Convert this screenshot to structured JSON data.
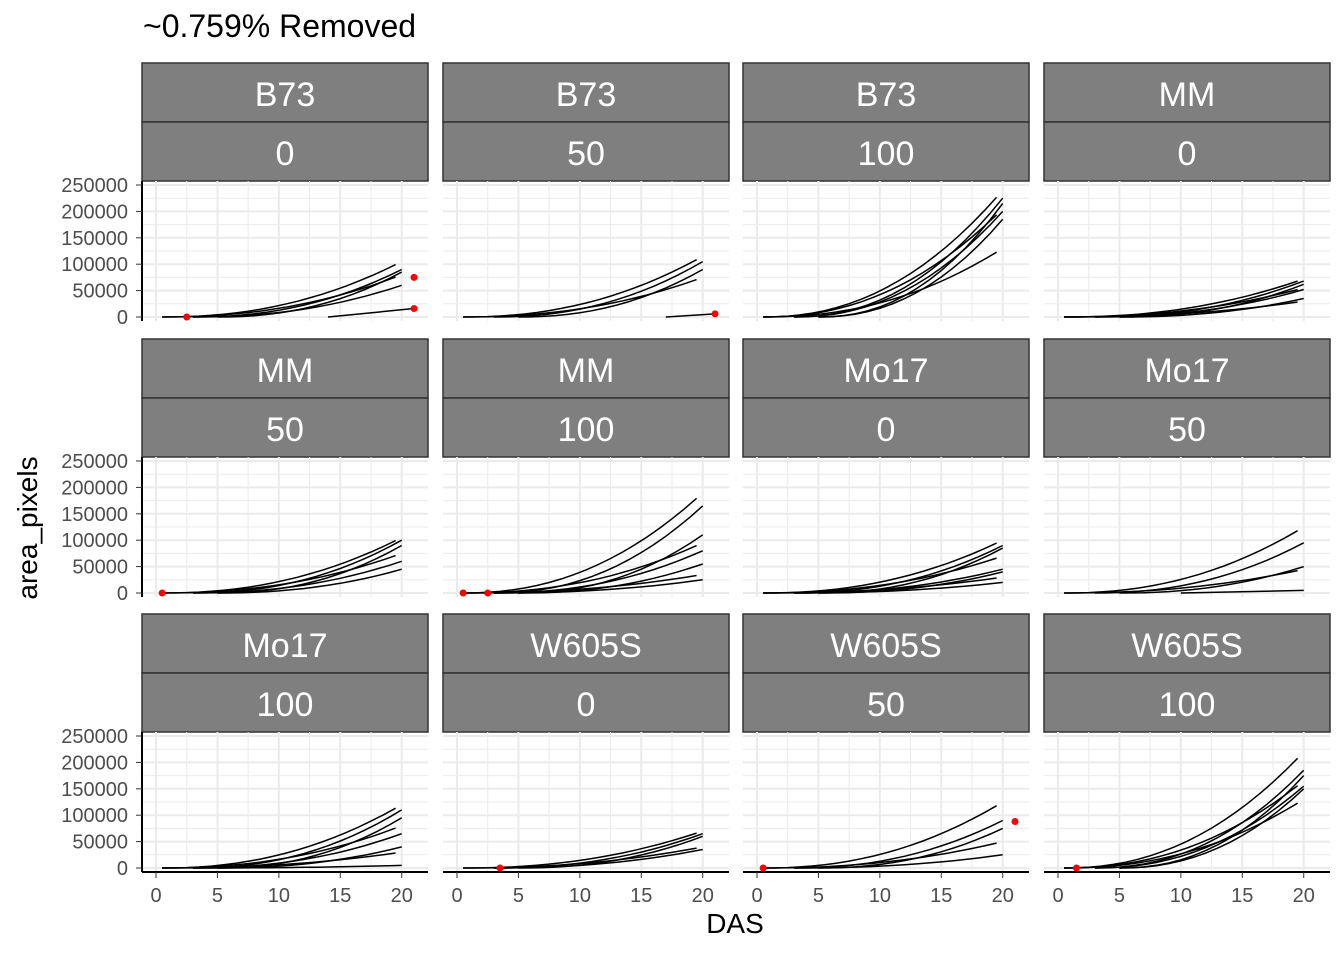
{
  "chart_data": {
    "type": "line",
    "title": "~0.759% Removed",
    "xlabel": "DAS",
    "ylabel": "area_pixels",
    "xlim": [
      0,
      21
    ],
    "ylim": [
      0,
      250000
    ],
    "x_ticks": [
      0,
      5,
      10,
      15,
      20
    ],
    "y_ticks": [
      0,
      50000,
      100000,
      150000,
      200000,
      250000
    ],
    "y_tick_labels": [
      "0",
      "50000",
      "100000",
      "150000",
      "200000",
      "250000"
    ],
    "x_tick_labels": [
      "0",
      "5",
      "10",
      "15",
      "20"
    ],
    "grid": true,
    "facet_rows": [
      "genotype",
      "treatment"
    ],
    "panels": [
      {
        "genotype": "B73",
        "treatment": "0",
        "max": [
          105000,
          90000,
          85000,
          80000,
          60000
        ],
        "late": [
          [
            14,
            0
          ],
          [
            21,
            16000
          ]
        ],
        "outliers": [
          [
            2.5,
            0
          ],
          [
            21,
            75000
          ],
          [
            21,
            16000
          ]
        ]
      },
      {
        "genotype": "B73",
        "treatment": "50",
        "max": [
          115000,
          105000,
          90000,
          75000
        ],
        "late": [
          [
            17,
            0
          ],
          [
            21,
            6000
          ]
        ],
        "outliers": [
          [
            21,
            6000
          ]
        ]
      },
      {
        "genotype": "B73",
        "treatment": "100",
        "max": [
          240000,
          225000,
          215000,
          205000,
          200000,
          185000,
          130000
        ],
        "late": null,
        "outliers": []
      },
      {
        "genotype": "MM",
        "treatment": "0",
        "max": [
          72000,
          68000,
          62000,
          55000,
          52000,
          35000,
          30000
        ],
        "late": null,
        "outliers": []
      },
      {
        "genotype": "MM",
        "treatment": "50",
        "max": [
          105000,
          100000,
          90000,
          75000,
          60000,
          45000
        ],
        "late": null,
        "outliers": [
          [
            0.5,
            0
          ]
        ]
      },
      {
        "genotype": "MM",
        "treatment": "100",
        "max": [
          190000,
          165000,
          110000,
          95000,
          80000,
          55000,
          35000,
          25000
        ],
        "late": null,
        "outliers": [
          [
            0.5,
            0
          ],
          [
            2.5,
            0
          ]
        ]
      },
      {
        "genotype": "Mo17",
        "treatment": "0",
        "max": [
          100000,
          90000,
          85000,
          70000,
          45000,
          40000,
          30000,
          20000
        ],
        "late": null,
        "outliers": []
      },
      {
        "genotype": "Mo17",
        "treatment": "50",
        "max": [
          125000,
          95000,
          50000,
          45000
        ],
        "late": [
          [
            10,
            0
          ],
          [
            20,
            5000
          ]
        ],
        "outliers": []
      },
      {
        "genotype": "Mo17",
        "treatment": "100",
        "max": [
          120000,
          110000,
          95000,
          80000,
          65000,
          40000,
          30000,
          5000
        ],
        "late": null,
        "outliers": []
      },
      {
        "genotype": "W605S",
        "treatment": "0",
        "max": [
          70000,
          65000,
          60000,
          40000,
          35000
        ],
        "late": null,
        "outliers": [
          [
            3.5,
            0
          ]
        ]
      },
      {
        "genotype": "W605S",
        "treatment": "50",
        "max": [
          125000,
          90000,
          75000,
          50000,
          25000
        ],
        "late": null,
        "outliers": [
          [
            0.5,
            0
          ],
          [
            21,
            88000
          ]
        ]
      },
      {
        "genotype": "W605S",
        "treatment": "100",
        "max": [
          220000,
          185000,
          175000,
          165000,
          155000,
          150000,
          130000
        ],
        "late": null,
        "outliers": [
          [
            1.5,
            0
          ]
        ]
      }
    ],
    "colors": {
      "line": "#000000",
      "outlier": "#ff0000",
      "strip": "#7f7f7f",
      "strip_border": "#333333",
      "grid": "#ebebeb"
    }
  }
}
